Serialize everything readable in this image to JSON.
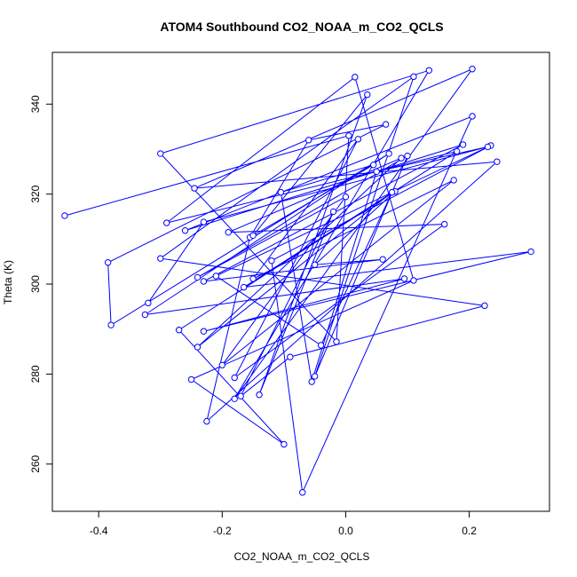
{
  "chart_data": {
    "type": "line",
    "title": "ATOM4 Southbound CO2_NOAA_m_CO2_QCLS",
    "xlabel": "CO2_NOAA_m_CO2_QCLS",
    "ylabel": "Theta (K)",
    "xlim": [
      -0.475,
      0.33
    ],
    "ylim": [
      249.5,
      351.5
    ],
    "xticks": [
      -0.4,
      -0.2,
      0.0,
      0.2
    ],
    "xtick_labels": [
      "-0.4",
      "-0.2",
      "0.0",
      "0.2"
    ],
    "yticks": [
      260,
      280,
      300,
      320,
      340
    ],
    "ytick_labels": [
      "260",
      "280",
      "300",
      "320",
      "340"
    ],
    "grid": false,
    "series": [
      {
        "color": "#0000ff",
        "marker": "open-circle",
        "x": [
          -0.455,
          0.005,
          -0.015,
          -0.3,
          0.135,
          -0.18,
          0.205,
          -0.245,
          0.245,
          -0.225,
          -0.155,
          -0.06,
          0.065,
          -0.385,
          -0.38,
          0.07,
          -0.325,
          0.095,
          -0.23,
          0.3,
          -0.165,
          0.18,
          -0.29,
          0.015,
          0.11,
          -0.25,
          -0.1,
          -0.27,
          0.08,
          -0.05,
          0.06,
          -0.23,
          0.19,
          -0.26,
          0.205,
          -0.07,
          -0.12,
          0.235,
          -0.21,
          -0.04,
          0.075,
          -0.24,
          0.09,
          -0.19,
          0.16,
          -0.18,
          0.02,
          -0.15,
          0.175,
          -0.2,
          0.0,
          -0.24,
          0.1,
          -0.05,
          0.11,
          -0.3,
          0.225,
          -0.09,
          -0.17,
          -0.02,
          -0.14,
          0.035,
          -0.15,
          0.045,
          -0.105,
          -0.055,
          0.05,
          0.23,
          -0.23,
          -0.32
        ],
        "y": [
          315.2,
          333.0,
          287.2,
          329.0,
          347.5,
          274.5,
          347.8,
          321.3,
          327.2,
          269.5,
          310.4,
          332.0,
          335.5,
          304.8,
          290.9,
          329.0,
          293.2,
          301.2,
          289.5,
          307.2,
          299.3,
          329.5,
          313.6,
          346.0,
          300.8,
          278.8,
          264.4,
          289.8,
          320.6,
          304.3,
          305.5,
          300.6,
          331.0,
          311.9,
          337.3,
          253.7,
          305.2,
          330.8,
          301.8,
          286.4,
          320.4,
          286.0,
          328.0,
          311.5,
          313.3,
          279.2,
          332.2,
          301.2,
          323.1,
          282.0,
          319.4,
          301.5,
          328.5,
          279.5,
          346.1,
          305.7,
          295.2,
          283.8,
          275.1,
          316.1,
          275.4,
          342.1,
          310.8,
          326.5,
          320.4,
          278.3,
          325.0,
          330.5,
          313.8,
          295.8
        ]
      }
    ]
  }
}
